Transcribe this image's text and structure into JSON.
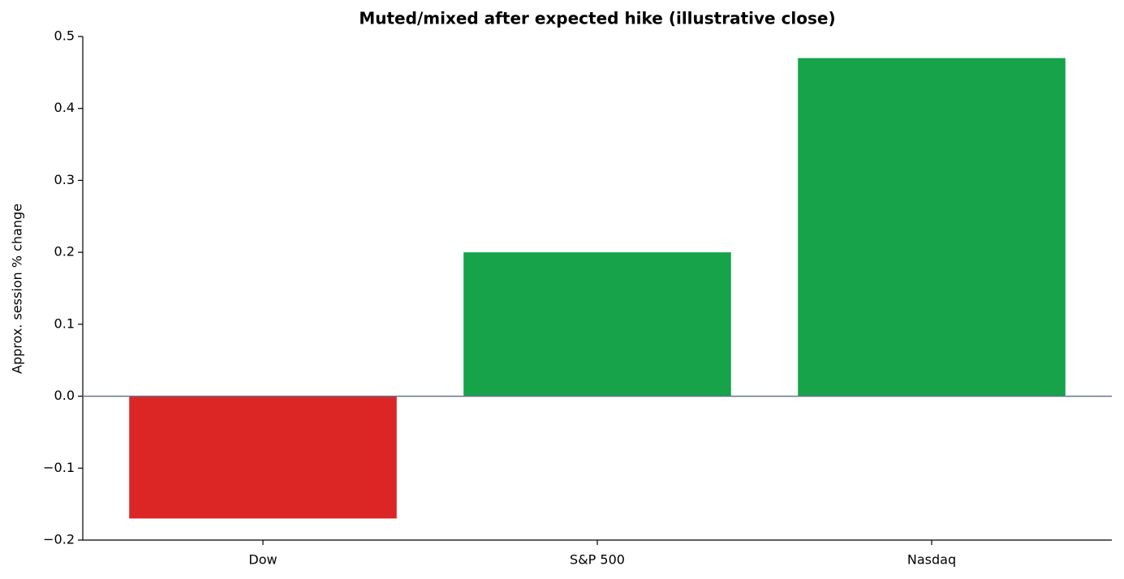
{
  "chart_data": {
    "type": "bar",
    "title": "Muted/mixed after expected hike (illustrative close)",
    "y_label": "Approx. session % change",
    "categories": [
      "Dow",
      "S&P 500",
      "Nasdaq"
    ],
    "values": [
      -0.17,
      0.2,
      0.47
    ],
    "colors": [
      "#dc2626",
      "#16a34a",
      "#16a34a"
    ],
    "ylim": [
      -0.2,
      0.5
    ],
    "yticks": [
      {
        "value": -0.2,
        "label": "−0.2"
      },
      {
        "value": -0.1,
        "label": "−0.1"
      },
      {
        "value": 0,
        "label": "0.0"
      },
      0.1,
      0.2,
      0.3,
      0.4,
      0.5
    ],
    "zero_line_color": "#64748b"
  }
}
